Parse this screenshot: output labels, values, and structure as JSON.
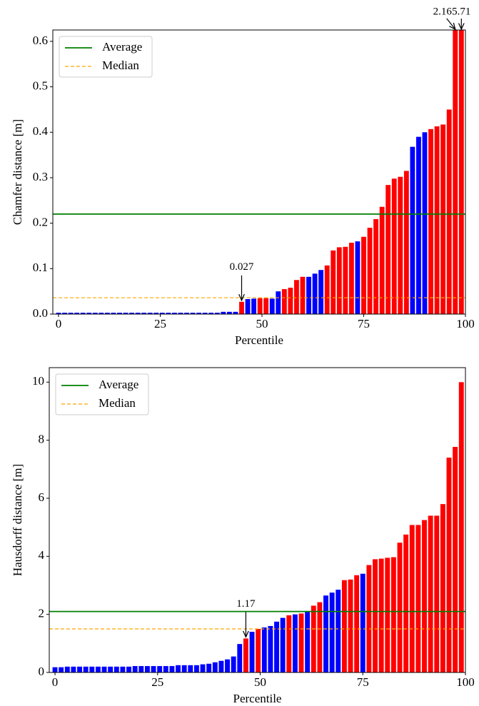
{
  "chart_data": [
    {
      "type": "bar",
      "ylabel": "Chamfer distance [m]",
      "xlabel": "Percentile",
      "x": [
        0,
        1.5,
        3,
        4.5,
        6,
        7.5,
        9,
        10.5,
        12,
        13.5,
        15,
        16.5,
        18,
        19.5,
        21,
        22.5,
        24,
        25.5,
        27,
        28.5,
        30,
        31.5,
        33,
        34.5,
        36,
        37.5,
        39,
        40.5,
        42,
        43.5,
        45,
        46.5,
        48,
        49.5,
        51,
        52.5,
        54,
        55.5,
        57,
        58.5,
        60,
        61.5,
        63,
        64.5,
        66,
        67.5,
        69,
        70.5,
        72,
        73.5,
        75,
        76.5,
        78,
        79.5,
        81,
        82.5,
        84,
        85.5,
        87,
        88.5,
        90,
        91.5,
        93,
        94.5,
        96,
        97.5,
        99
      ],
      "values": [
        0.003,
        0.003,
        0.003,
        0.003,
        0.003,
        0.003,
        0.003,
        0.003,
        0.003,
        0.003,
        0.003,
        0.003,
        0.003,
        0.003,
        0.003,
        0.003,
        0.003,
        0.003,
        0.003,
        0.003,
        0.003,
        0.003,
        0.003,
        0.003,
        0.003,
        0.003,
        0.003,
        0.005,
        0.005,
        0.005,
        0.027,
        0.033,
        0.034,
        0.035,
        0.035,
        0.034,
        0.05,
        0.055,
        0.058,
        0.075,
        0.082,
        0.082,
        0.089,
        0.097,
        0.107,
        0.14,
        0.147,
        0.148,
        0.157,
        0.16,
        0.17,
        0.19,
        0.209,
        0.236,
        0.284,
        0.298,
        0.302,
        0.315,
        0.368,
        0.39,
        0.4,
        0.407,
        0.413,
        0.417,
        0.45,
        2.16,
        5.71
      ],
      "colors": [
        "#0000ff",
        "#0000ff",
        "#0000ff",
        "#0000ff",
        "#0000ff",
        "#0000ff",
        "#0000ff",
        "#0000ff",
        "#0000ff",
        "#0000ff",
        "#0000ff",
        "#0000ff",
        "#0000ff",
        "#0000ff",
        "#0000ff",
        "#0000ff",
        "#0000ff",
        "#0000ff",
        "#0000ff",
        "#0000ff",
        "#0000ff",
        "#0000ff",
        "#0000ff",
        "#0000ff",
        "#0000ff",
        "#0000ff",
        "#0000ff",
        "#0000ff",
        "#0000ff",
        "#0000ff",
        "#ff0000",
        "#0000ff",
        "#0000ff",
        "#ff0000",
        "#ff0000",
        "#0000ff",
        "#0000ff",
        "#ff0000",
        "#ff0000",
        "#ff0000",
        "#ff0000",
        "#0000ff",
        "#0000ff",
        "#0000ff",
        "#ff0000",
        "#ff0000",
        "#ff0000",
        "#ff0000",
        "#ff0000",
        "#0000ff",
        "#ff0000",
        "#ff0000",
        "#ff0000",
        "#ff0000",
        "#ff0000",
        "#ff0000",
        "#ff0000",
        "#ff0000",
        "#0000ff",
        "#0000ff",
        "#0000ff",
        "#ff0000",
        "#ff0000",
        "#ff0000",
        "#ff0000",
        "#ff0000",
        "#ff0000"
      ],
      "value_labels": [
        null,
        null,
        null,
        null,
        null,
        null,
        null,
        null,
        null,
        null,
        null,
        null,
        null,
        null,
        null,
        null,
        null,
        null,
        null,
        null,
        null,
        null,
        null,
        null,
        null,
        null,
        null,
        null,
        null,
        null,
        "0.027",
        null,
        null,
        null,
        null,
        null,
        null,
        null,
        null,
        null,
        null,
        null,
        null,
        null,
        null,
        null,
        null,
        null,
        null,
        null,
        null,
        null,
        null,
        null,
        null,
        null,
        null,
        null,
        null,
        null,
        null,
        null,
        null,
        null,
        null,
        "2.16",
        "5.71"
      ],
      "lines": [
        {
          "name": "Average",
          "color": "#008000",
          "value": 0.22,
          "style": "solid"
        },
        {
          "name": "Median",
          "color": "#ffa500",
          "value": 0.036,
          "style": "dashed"
        }
      ],
      "legend": "upper left",
      "xlim": [
        -1.4,
        100
      ],
      "ylim": [
        0,
        0.625
      ],
      "xticks": [
        0,
        25,
        50,
        75,
        100
      ],
      "yticks": [
        {
          "value": 0,
          "label": "0.0"
        },
        0.1,
        0.2,
        0.3,
        0.4,
        0.5,
        0.6
      ]
    },
    {
      "type": "bar",
      "ylabel": "Hausdorff distance [m]",
      "xlabel": "Percentile",
      "x": [
        0,
        1.5,
        3,
        4.5,
        6,
        7.5,
        9,
        10.5,
        12,
        13.5,
        15,
        16.5,
        18,
        19.5,
        21,
        22.5,
        24,
        25.5,
        27,
        28.5,
        30,
        31.5,
        33,
        34.5,
        36,
        37.5,
        39,
        40.5,
        42,
        43.5,
        45,
        46.5,
        48,
        49.5,
        51,
        52.5,
        54,
        55.5,
        57,
        58.5,
        60,
        61.5,
        63,
        64.5,
        66,
        67.5,
        69,
        70.5,
        72,
        73.5,
        75,
        76.5,
        78,
        79.5,
        81,
        82.5,
        84,
        85.5,
        87,
        88.5,
        90,
        91.5,
        93,
        94.5,
        96,
        97.5,
        99
      ],
      "values": [
        0.18,
        0.18,
        0.2,
        0.2,
        0.2,
        0.2,
        0.2,
        0.2,
        0.2,
        0.2,
        0.2,
        0.2,
        0.2,
        0.22,
        0.22,
        0.22,
        0.22,
        0.22,
        0.22,
        0.22,
        0.25,
        0.25,
        0.25,
        0.25,
        0.28,
        0.3,
        0.35,
        0.4,
        0.45,
        0.55,
        0.98,
        1.17,
        1.4,
        1.5,
        1.55,
        1.6,
        1.75,
        1.88,
        1.97,
        2.0,
        2.03,
        2.1,
        2.3,
        2.42,
        2.65,
        2.75,
        2.85,
        3.18,
        3.2,
        3.35,
        3.4,
        3.7,
        3.9,
        3.92,
        3.95,
        3.97,
        4.47,
        4.75,
        5.08,
        5.08,
        5.25,
        5.4,
        5.4,
        5.8,
        7.4,
        7.77,
        10.0
      ],
      "colors": [
        "#0000ff",
        "#0000ff",
        "#0000ff",
        "#0000ff",
        "#0000ff",
        "#0000ff",
        "#0000ff",
        "#0000ff",
        "#0000ff",
        "#0000ff",
        "#0000ff",
        "#0000ff",
        "#0000ff",
        "#0000ff",
        "#0000ff",
        "#0000ff",
        "#0000ff",
        "#0000ff",
        "#0000ff",
        "#0000ff",
        "#0000ff",
        "#0000ff",
        "#0000ff",
        "#0000ff",
        "#0000ff",
        "#0000ff",
        "#0000ff",
        "#0000ff",
        "#0000ff",
        "#0000ff",
        "#0000ff",
        "#ff0000",
        "#0000ff",
        "#ff0000",
        "#0000ff",
        "#0000ff",
        "#0000ff",
        "#0000ff",
        "#ff0000",
        "#0000ff",
        "#ff0000",
        "#0000ff",
        "#ff0000",
        "#ff0000",
        "#0000ff",
        "#0000ff",
        "#0000ff",
        "#ff0000",
        "#ff0000",
        "#ff0000",
        "#0000ff",
        "#ff0000",
        "#ff0000",
        "#ff0000",
        "#ff0000",
        "#ff0000",
        "#ff0000",
        "#ff0000",
        "#ff0000",
        "#ff0000",
        "#ff0000",
        "#ff0000",
        "#ff0000",
        "#ff0000",
        "#ff0000",
        "#ff0000",
        "#ff0000"
      ],
      "value_labels": [
        null,
        null,
        null,
        null,
        null,
        null,
        null,
        null,
        null,
        null,
        null,
        null,
        null,
        null,
        null,
        null,
        null,
        null,
        null,
        null,
        null,
        null,
        null,
        null,
        null,
        null,
        null,
        null,
        null,
        null,
        null,
        "1.17",
        null,
        null,
        null,
        null,
        null,
        null,
        null,
        null,
        null,
        null,
        null,
        null,
        null,
        null,
        null,
        null,
        null,
        null,
        null,
        null,
        null,
        null,
        null,
        null,
        null,
        null,
        null,
        null,
        null,
        null,
        null,
        null,
        null,
        null,
        null
      ],
      "lines": [
        {
          "name": "Average",
          "color": "#008000",
          "value": 2.1,
          "style": "solid"
        },
        {
          "name": "Median",
          "color": "#ffa500",
          "value": 1.5,
          "style": "dashed"
        }
      ],
      "legend": "upper left",
      "xlim": [
        -1.4,
        100
      ],
      "ylim": [
        0,
        10.5
      ],
      "xticks": [
        0,
        25,
        50,
        75,
        100
      ],
      "yticks": [
        0,
        2,
        4,
        6,
        8,
        10
      ]
    }
  ]
}
